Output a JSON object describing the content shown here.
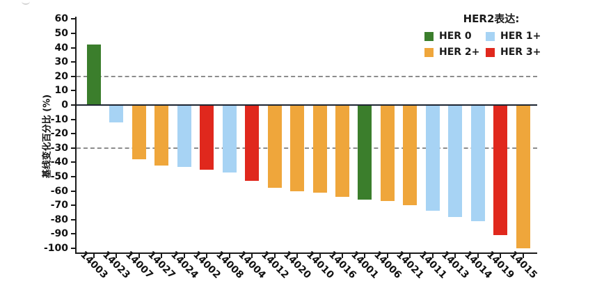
{
  "chart_data": {
    "type": "bar",
    "subtype": "waterfall",
    "title": "",
    "xlabel": "",
    "ylabel": "基线变化百分比 (%)",
    "ylim": [
      -100,
      60
    ],
    "ytick_step": 10,
    "ytick_labels": [
      "60",
      "50",
      "40",
      "30",
      "20",
      "10",
      "0",
      "-10",
      "-20",
      "-30",
      "-40",
      "-50",
      "-60",
      "-70",
      "-80",
      "-90",
      "-100"
    ],
    "baseline": 0,
    "dashed_reference_lines": [
      20,
      -30
    ],
    "grid": "off",
    "categories": [
      "14003",
      "14023",
      "14007",
      "14027",
      "14024",
      "14002",
      "14008",
      "14004",
      "14012",
      "14020",
      "14010",
      "14016",
      "14001",
      "14006",
      "14021",
      "14011",
      "14013",
      "14014",
      "14019",
      "14015"
    ],
    "values": [
      42,
      -12,
      -38,
      -42,
      -43,
      -45,
      -47,
      -53,
      -58,
      -60,
      -61,
      -64,
      -66,
      -67,
      -70,
      -74,
      -78,
      -81,
      -91,
      -100
    ],
    "groups": [
      "HER 0",
      "HER 1+",
      "HER 2+",
      "HER 2+",
      "HER 1+",
      "HER 3+",
      "HER 1+",
      "HER 3+",
      "HER 2+",
      "HER 2+",
      "HER 2+",
      "HER 2+",
      "HER 0",
      "HER 2+",
      "HER 2+",
      "HER 1+",
      "HER 1+",
      "HER 1+",
      "HER 3+",
      "HER 2+"
    ],
    "colors": {
      "HER 0": "#3b7e2c",
      "HER 1+": "#a7d3f4",
      "HER 2+": "#efa63b",
      "HER 3+": "#e0281d"
    },
    "legend": {
      "position": "top-right",
      "title": "HER2表达:",
      "items": [
        {
          "label": "HER 0",
          "color": "#3b7e2c"
        },
        {
          "label": "HER 1+",
          "color": "#a7d3f4"
        },
        {
          "label": "HER 2+",
          "color": "#efa63b"
        },
        {
          "label": "HER 3+",
          "color": "#e0281d"
        }
      ]
    },
    "line_colors": {
      "axis": "#1a1a1a",
      "zero_line": "#1c2430",
      "dashed_line": "#8c8c8c"
    }
  }
}
